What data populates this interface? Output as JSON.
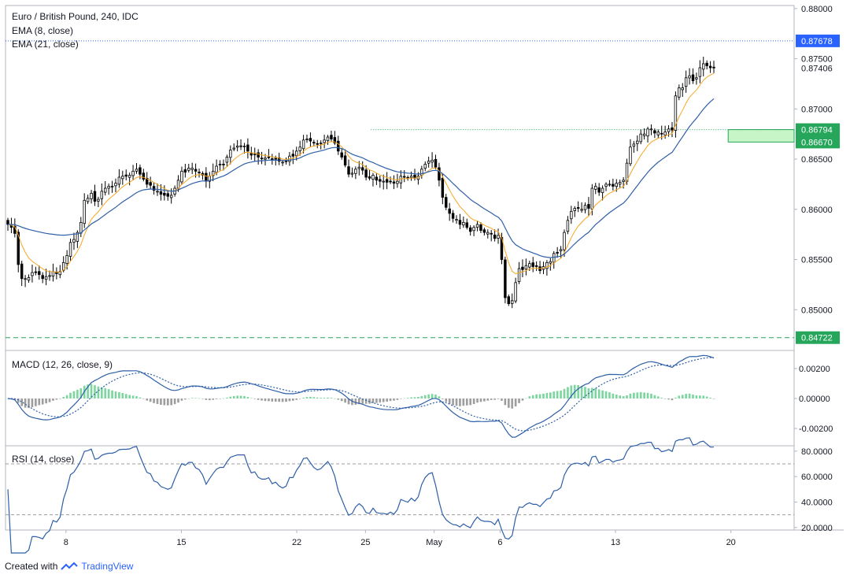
{
  "header": {
    "title": "Euro / British Pound, 240, IDC",
    "ema_fast_label": "EMA (8, close)",
    "ema_slow_label": "EMA (21, close)"
  },
  "macd_panel": {
    "label": "MACD (12, 26, close, 9)"
  },
  "rsi_panel": {
    "label": "RSI (14, close)"
  },
  "footer": {
    "created_with": "Created with",
    "brand": "TradingView"
  },
  "colors": {
    "up_candle": "#ffffff",
    "candle_outline": "#000000",
    "ema_fast": "#f5a623",
    "ema_slow": "#2e5fa8",
    "macd_line": "#2e5fa8",
    "signal_line": "#2e5fa8",
    "histogram_positive": "#7dd6a0",
    "histogram_negative": "#9e9e9e",
    "rsi_line": "#2e5fa8",
    "label_blue": "#2962ff",
    "label_green": "#26a65b",
    "zone_fill": "#c8f5c8",
    "zone_border": "#26a65b"
  },
  "chart_data": [
    {
      "type": "candlestick",
      "title": "Euro / British Pound, 240, IDC",
      "ylim": [
        0.8461,
        0.8803
      ],
      "y_ticks": [
        "0.88000",
        "0.87500",
        "0.87000",
        "0.86500",
        "0.86000",
        "0.85500",
        "0.85000"
      ],
      "x_ticks": [
        {
          "label": "8",
          "x": 22
        },
        {
          "label": "15",
          "x": 64
        },
        {
          "label": "22",
          "x": 106
        },
        {
          "label": "25",
          "x": 131
        },
        {
          "label": "May",
          "x": 156
        },
        {
          "label": "6",
          "x": 180
        },
        {
          "label": "13",
          "x": 222
        },
        {
          "label": "20",
          "x": 264
        }
      ],
      "x_range": [
        0,
        287
      ],
      "price_labels": [
        {
          "value": 0.87678,
          "text": "0.87678",
          "style": "blue",
          "line": "dotted-blue"
        },
        {
          "value": 0.87406,
          "text": "0.87406",
          "style": "plain",
          "line": "none"
        },
        {
          "value": 0.86794,
          "text": "0.86794",
          "style": "green",
          "line": "dotted-green"
        },
        {
          "value": 0.8667,
          "text": "0.86670",
          "style": "green",
          "line": "zone"
        },
        {
          "value": 0.84722,
          "text": "0.84722",
          "style": "green",
          "line": "dashed-green"
        }
      ],
      "resistance_line_start_x": 133,
      "zone": {
        "top": 0.86794,
        "bottom": 0.8667,
        "x_start": 263
      },
      "close": [
        0.8585,
        0.8582,
        0.8576,
        0.8545,
        0.8531,
        0.8531,
        0.8532,
        0.8537,
        0.8537,
        0.8535,
        0.8531,
        0.8533,
        0.8534,
        0.8538,
        0.8536,
        0.8538,
        0.8547,
        0.8554,
        0.8567,
        0.857,
        0.8577,
        0.8587,
        0.8609,
        0.8611,
        0.8616,
        0.8608,
        0.861,
        0.8618,
        0.8621,
        0.8623,
        0.8623,
        0.8626,
        0.8632,
        0.8633,
        0.8633,
        0.8634,
        0.8638,
        0.864,
        0.8635,
        0.863,
        0.8625,
        0.8624,
        0.8619,
        0.8618,
        0.8615,
        0.8614,
        0.8613,
        0.8614,
        0.8621,
        0.8629,
        0.8638,
        0.8637,
        0.8641,
        0.8641,
        0.8638,
        0.8637,
        0.8634,
        0.8628,
        0.8633,
        0.8638,
        0.8643,
        0.8645,
        0.8645,
        0.8652,
        0.8659,
        0.8661,
        0.8663,
        0.8663,
        0.8663,
        0.8658,
        0.8654,
        0.8655,
        0.8652,
        0.8651,
        0.8651,
        0.8652,
        0.8649,
        0.865,
        0.8648,
        0.8647,
        0.8648,
        0.8653,
        0.8653,
        0.8658,
        0.8662,
        0.8669,
        0.867,
        0.8668,
        0.8666,
        0.8665,
        0.8666,
        0.8669,
        0.8672,
        0.867,
        0.8666,
        0.8658,
        0.8652,
        0.8644,
        0.8635,
        0.8636,
        0.864,
        0.8642,
        0.8639,
        0.8632,
        0.8631,
        0.8634,
        0.8629,
        0.8628,
        0.8628,
        0.8627,
        0.8628,
        0.8626,
        0.8628,
        0.8633,
        0.8632,
        0.8631,
        0.8633,
        0.8631,
        0.8633,
        0.864,
        0.8645,
        0.8648,
        0.8649,
        0.8642,
        0.8629,
        0.8612,
        0.8602,
        0.8596,
        0.8591,
        0.859,
        0.8585,
        0.8587,
        0.8582,
        0.8578,
        0.8582,
        0.8585,
        0.8579,
        0.8577,
        0.8577,
        0.8576,
        0.8571,
        0.8574,
        0.855,
        0.8512,
        0.8506,
        0.8509,
        0.8527,
        0.8541,
        0.854,
        0.8544,
        0.8546,
        0.8543,
        0.8543,
        0.8539,
        0.8543,
        0.8547,
        0.8548,
        0.8556,
        0.8557,
        0.856,
        0.8577,
        0.8589,
        0.8598,
        0.8601,
        0.8601,
        0.86,
        0.8604,
        0.8601,
        0.8621,
        0.8623,
        0.8617,
        0.8621,
        0.8625,
        0.8625,
        0.8623,
        0.8626,
        0.8627,
        0.8629,
        0.8646,
        0.8662,
        0.8665,
        0.8668,
        0.8675,
        0.8675,
        0.868,
        0.868,
        0.8676,
        0.8677,
        0.8675,
        0.8677,
        0.868,
        0.8679,
        0.8713,
        0.8721,
        0.8721,
        0.8731,
        0.8733,
        0.8728,
        0.8731,
        0.8741,
        0.8745,
        0.8743,
        0.8741,
        0.8741
      ],
      "ema_fast_last": 0.8734,
      "ema_slow_last": 0.8704
    },
    {
      "type": "line",
      "title": "MACD (12, 26, close, 9)",
      "ylim": [
        -0.0031,
        0.0031
      ],
      "y_ticks": [
        "0.00200",
        "0.00000",
        "-0.00200"
      ],
      "series": [
        {
          "name": "MACD",
          "derived_from": "close",
          "style": "solid"
        },
        {
          "name": "Signal",
          "derived_from": "MACD",
          "style": "dotted"
        },
        {
          "name": "Histogram",
          "derived_from": "MACD-Signal",
          "style": "bars"
        }
      ]
    },
    {
      "type": "line",
      "title": "RSI (14, close)",
      "ylim": [
        18,
        83
      ],
      "y_ticks": [
        "80.0000",
        "60.0000",
        "40.0000",
        "20.0000"
      ],
      "bands": [
        70,
        30
      ],
      "series": [
        {
          "name": "RSI",
          "derived_from": "close"
        }
      ]
    }
  ]
}
